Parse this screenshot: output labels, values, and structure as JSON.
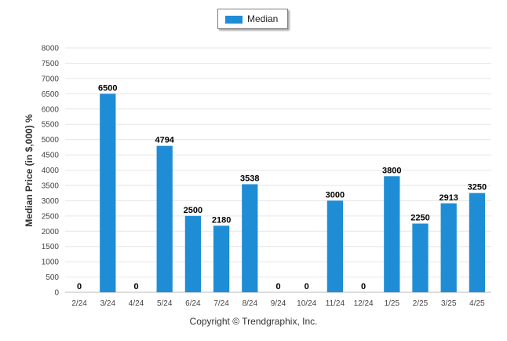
{
  "chart_data": {
    "type": "bar",
    "categories": [
      "2/24",
      "3/24",
      "4/24",
      "5/24",
      "6/24",
      "7/24",
      "8/24",
      "9/24",
      "10/24",
      "11/24",
      "12/24",
      "1/25",
      "2/25",
      "3/25",
      "4/25"
    ],
    "series": [
      {
        "name": "Median",
        "values": [
          0,
          6500,
          0,
          4794,
          2500,
          2180,
          3538,
          0,
          0,
          3000,
          0,
          3800,
          2250,
          2913,
          3250
        ]
      }
    ],
    "ylabel": "Median Price (in $,000) %",
    "xlabel": "",
    "ylim": [
      0,
      8000
    ],
    "yticks": [
      0,
      500,
      1000,
      1500,
      2000,
      2500,
      3000,
      3500,
      4000,
      4500,
      5000,
      5500,
      6000,
      6500,
      7000,
      7500,
      8000
    ],
    "grid": true,
    "legend_position": "top-center",
    "bar_color": "#1f8dd6"
  },
  "footer": {
    "copyright": "Copyright © Trendgraphix, Inc."
  }
}
